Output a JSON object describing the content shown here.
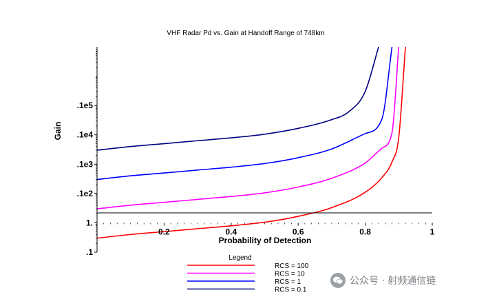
{
  "chart_data": {
    "type": "line",
    "title": "VHF Radar Pd vs. Gain at Handoff Range of 748km",
    "xlabel": "Probability of Detection",
    "ylabel": "Gain",
    "xlim": [
      0,
      1
    ],
    "ylim": [
      0.1,
      1000000
    ],
    "yscale": "log",
    "x_ticks": [
      "0.2",
      "0.4",
      "0.6",
      "0.8",
      "1"
    ],
    "y_ticks": [
      ".1",
      "1.",
      ".1e2",
      ".1e3",
      ".1e4",
      ".1e5"
    ],
    "grid": false,
    "legend_title": "Legend",
    "legend_position": "bottom",
    "series": [
      {
        "name": "RCS = 100",
        "color": "#ff0000",
        "x": [
          0.0,
          0.1,
          0.2,
          0.3,
          0.4,
          0.5,
          0.6,
          0.7,
          0.8,
          0.85,
          0.88,
          0.9,
          0.92
        ],
        "y": [
          0.3,
          0.4,
          0.5,
          0.63,
          0.79,
          1.05,
          1.66,
          3.3,
          11,
          35,
          120,
          800,
          1000000
        ]
      },
      {
        "name": "RCS = 10",
        "color": "#ff00ff",
        "x": [
          0.0,
          0.1,
          0.2,
          0.3,
          0.4,
          0.5,
          0.6,
          0.7,
          0.8,
          0.85,
          0.88,
          0.9
        ],
        "y": [
          3.0,
          4.0,
          5.0,
          6.3,
          7.9,
          10.5,
          16.6,
          33,
          110,
          350,
          1200,
          1000000
        ]
      },
      {
        "name": "RCS = 1",
        "color": "#0000ff",
        "x": [
          0.0,
          0.1,
          0.2,
          0.3,
          0.4,
          0.5,
          0.6,
          0.7,
          0.8,
          0.85,
          0.88
        ],
        "y": [
          30,
          40,
          50,
          63,
          79,
          105,
          166,
          330,
          1100,
          3500,
          1000000
        ]
      },
      {
        "name": "RCS = 0.1",
        "color": "#000080",
        "x": [
          0.0,
          0.1,
          0.2,
          0.3,
          0.4,
          0.5,
          0.6,
          0.7,
          0.75,
          0.8,
          0.84
        ],
        "y": [
          300,
          400,
          500,
          630,
          790,
          1050,
          1660,
          3300,
          6000,
          30000,
          1000000
        ]
      }
    ]
  },
  "watermark": {
    "text": "公众号 · 射频通信链"
  }
}
